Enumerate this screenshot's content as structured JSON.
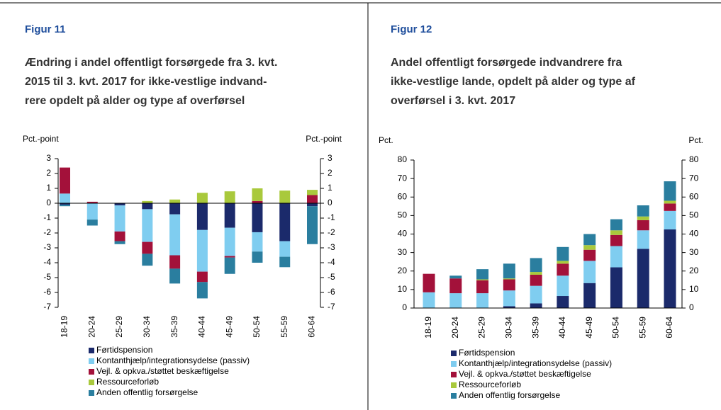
{
  "chart_data": [
    {
      "type": "bar",
      "stacked": true,
      "figure_label": "Figur 11",
      "title": [
        "Ændring i andel offentligt forsørgede fra 3. kvt.",
        "2015 til 3. kvt. 2017 for ikke-vestlige indvand-",
        "rere opdelt på alder og type af overførsel"
      ],
      "ylabel": "Pct.-point",
      "y2label": "Pct.-point",
      "categories": [
        "18-19",
        "20-24",
        "25-29",
        "30-34",
        "35-39",
        "40-44",
        "45-49",
        "50-54",
        "55-59",
        "60-64"
      ],
      "series": [
        {
          "name": "Førtidspension",
          "color": "#1b2a6b",
          "values": [
            -0.1,
            0,
            -0.15,
            -0.4,
            -0.75,
            -1.8,
            -1.65,
            -1.95,
            -2.55,
            -0.2
          ]
        },
        {
          "name": "Kontanthjælp/integrationsydelse (passiv)",
          "color": "#7fcdf0",
          "values": [
            0.65,
            -1.1,
            -1.75,
            -2.2,
            -2.75,
            -2.8,
            -1.9,
            -1.3,
            -1.05,
            0
          ]
        },
        {
          "name": "Vejl. & opkva./støttet beskæftigelse",
          "color": "#a3113a",
          "values": [
            1.75,
            0.1,
            -0.65,
            -0.8,
            -0.9,
            -0.7,
            -0.1,
            0.15,
            0,
            0.55
          ]
        },
        {
          "name": "Ressourceforløb",
          "color": "#a9c93c",
          "values": [
            0,
            0,
            0,
            0.15,
            0.25,
            0.7,
            0.8,
            0.85,
            0.85,
            0.35
          ]
        },
        {
          "name": "Anden offentlig forsørgelse",
          "color": "#2a7e9f",
          "values": [
            -0.1,
            -0.4,
            -0.2,
            -0.8,
            -1.0,
            -1.1,
            -1.1,
            -0.75,
            -0.7,
            -2.55
          ]
        }
      ],
      "ylim": [
        -7,
        3
      ],
      "yticks": [
        -7,
        -6,
        -5,
        -4,
        -3,
        -2,
        -1,
        0,
        1,
        2,
        3
      ],
      "y2lim": [
        -7,
        3
      ],
      "y2ticks": [
        -7,
        -6,
        -5,
        -4,
        -3,
        -2,
        -1,
        0,
        1,
        2,
        3
      ]
    },
    {
      "type": "bar",
      "stacked": true,
      "figure_label": "Figur 12",
      "title": [
        "Andel offentligt forsørgede indvandrere fra",
        "ikke-vestlige lande, opdelt på alder og type af",
        "overførsel i 3. kvt. 2017"
      ],
      "ylabel": "Pct.",
      "y2label": "Pct.",
      "categories": [
        "18-19",
        "20-24",
        "25-29",
        "30-34",
        "35-39",
        "40-44",
        "45-49",
        "50-54",
        "55-59",
        "60-64"
      ],
      "series": [
        {
          "name": "Førtidspension",
          "color": "#1b2a6b",
          "values": [
            0,
            0,
            0,
            1,
            2.5,
            6.5,
            13.5,
            22,
            32,
            42.5
          ]
        },
        {
          "name": "Kontanthjælp/integrationsydelse (passiv)",
          "color": "#7fcdf0",
          "values": [
            8.5,
            8,
            8,
            8.5,
            9.5,
            11,
            12,
            11.5,
            10,
            10
          ]
        },
        {
          "name": "Vejl. & opkva./støttet beskæftigelse",
          "color": "#a3113a",
          "values": [
            10,
            8,
            7,
            6,
            6,
            6.5,
            6,
            6,
            5.5,
            4
          ]
        },
        {
          "name": "Ressourceforløb",
          "color": "#a9c93c",
          "values": [
            0,
            0,
            0.5,
            0.5,
            1.5,
            1.5,
            2.5,
            2.5,
            2,
            1.5
          ]
        },
        {
          "name": "Anden offentlig forsørgelse",
          "color": "#2a7e9f",
          "values": [
            0,
            1.5,
            5.5,
            8,
            7.5,
            7.5,
            6,
            6,
            6,
            10.5
          ]
        }
      ],
      "ylim": [
        0,
        80
      ],
      "yticks": [
        0,
        10,
        20,
        30,
        40,
        50,
        60,
        70,
        80
      ],
      "y2lim": [
        0,
        80
      ],
      "y2ticks": [
        0,
        10,
        20,
        30,
        40,
        50,
        60,
        70,
        80
      ]
    }
  ]
}
